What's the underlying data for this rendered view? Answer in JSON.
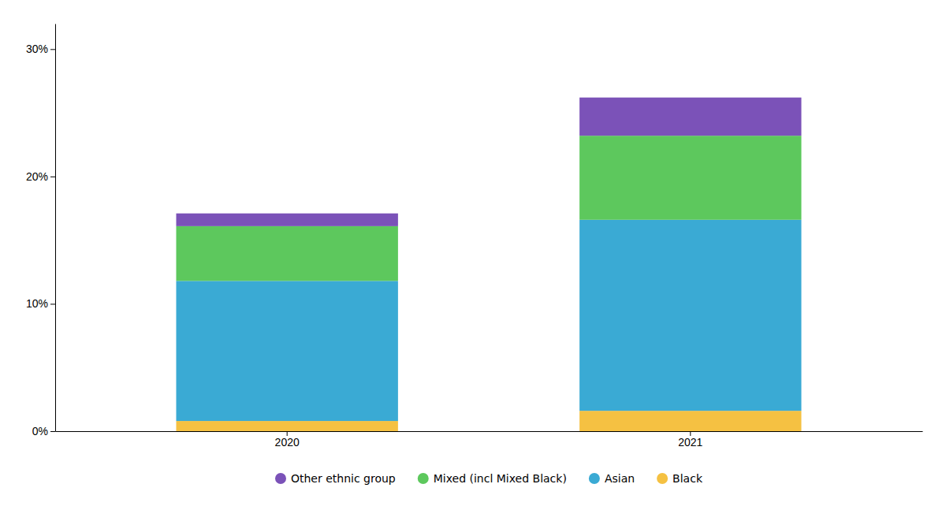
{
  "chart_data": {
    "type": "bar",
    "stacked": true,
    "categories": [
      "2020",
      "2021"
    ],
    "series": [
      {
        "name": "Black",
        "color": "#F5C142",
        "values": [
          0.8,
          1.6
        ]
      },
      {
        "name": "Asian",
        "color": "#3AAAD4",
        "values": [
          11.0,
          15.0
        ]
      },
      {
        "name": "Mixed (incl Mixed Black)",
        "color": "#5DC85D",
        "values": [
          4.3,
          6.6
        ]
      },
      {
        "name": "Other ethnic group",
        "color": "#7B52B8",
        "values": [
          1.0,
          3.0
        ]
      }
    ],
    "ylim": [
      0,
      32
    ],
    "yticks": [
      {
        "value": 0,
        "label": "0%"
      },
      {
        "value": 10,
        "label": "10%"
      },
      {
        "value": 20,
        "label": "20%"
      },
      {
        "value": 30,
        "label": "30%"
      }
    ],
    "grid": false,
    "legend": "bottom"
  }
}
